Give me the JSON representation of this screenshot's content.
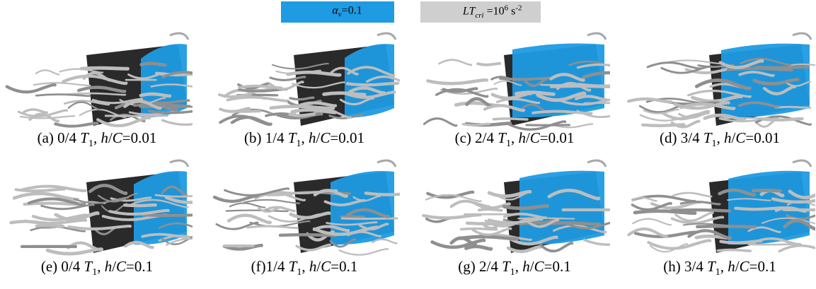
{
  "legend": {
    "vapor": {
      "prefix": "α",
      "sub": "v",
      "suffix": "=0.1",
      "color": "#1e9be3"
    },
    "vortex": {
      "prefix": "LT",
      "sub": "cri",
      "eq": " =10",
      "sup": "6",
      "unit": " s",
      "unitsup": "-2",
      "color": "#cfcfcf"
    }
  },
  "panels": [
    {
      "tag": "(a) 0/4 ",
      "t": "T",
      "tsub": "1",
      "mid": ", ",
      "h": "h",
      "slash": "/",
      "c": "C",
      "val": "=0.01",
      "blue": 0.25
    },
    {
      "tag": "(b) 1/4 ",
      "t": "T",
      "tsub": "1",
      "mid": ", ",
      "h": "h",
      "slash": "/",
      "c": "C",
      "val": "=0.01",
      "blue": 0.3
    },
    {
      "tag": "(c) 2/4 ",
      "t": "T",
      "tsub": "1",
      "mid": ", ",
      "h": "h",
      "slash": "/",
      "c": "C",
      "val": "=0.01",
      "blue": 0.9
    },
    {
      "tag": "(d) 3/4 ",
      "t": "T",
      "tsub": "1",
      "mid": ", ",
      "h": "h",
      "slash": "/",
      "c": "C",
      "val": "=0.01",
      "blue": 0.85
    },
    {
      "tag": "(e) 0/4 ",
      "t": "T",
      "tsub": "1",
      "mid": ", ",
      "h": "h",
      "slash": "/",
      "c": "C",
      "val": "=0.1",
      "blue": 0.35
    },
    {
      "tag": "(f)1/4 ",
      "t": "T",
      "tsub": "1",
      "mid": ", ",
      "h": "h",
      "slash": "/",
      "c": "C",
      "val": "=0.1",
      "blue": 0.5
    },
    {
      "tag": "(g) 2/4 ",
      "t": "T",
      "tsub": "1",
      "mid": ", ",
      "h": "h",
      "slash": "/",
      "c": "C",
      "val": "=0.1",
      "blue": 0.8
    },
    {
      "tag": "(h) 3/4 ",
      "t": "T",
      "tsub": "1",
      "mid": ", ",
      "h": "h",
      "slash": "/",
      "c": "C",
      "val": "=0.1",
      "blue": 0.75
    }
  ]
}
